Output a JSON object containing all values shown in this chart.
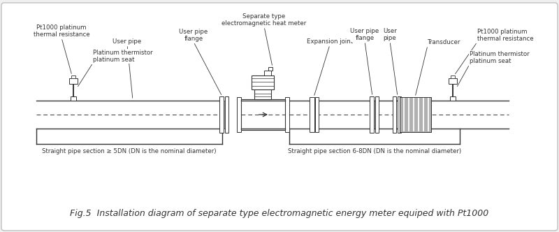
{
  "title": "Fig.5  Installation diagram of separate type electromagnetic energy meter equiped with Pt1000",
  "bg_color": "#f0f0f0",
  "border_color": "#c0c0c0",
  "line_color": "#333333",
  "gray_fill": "#999999",
  "light_gray_fill": "#b0b0b0",
  "white": "#ffffff",
  "labels": {
    "pt1000_left": "Pt1000 platinum\nthermal resistance",
    "thermistor_left": "Platinum thermistor\nplatinum seat",
    "user_pipe_left": "User pipe",
    "upf_left": "User pipe\nflange",
    "em_meter": "Separate type\nelectromagnetic heat meter",
    "exp_joint": "Expansion joint",
    "upf_right": "User pipe\nflange",
    "up_right": "User\npipe",
    "transducer": "Transducer",
    "pt1000_right": "Pt1000 platinum\nthermal resistance",
    "thermistor_right": "Platinum thermistor\nplatinum seat",
    "straight_left": "Straight pipe section ≥ 5DN (DN is the nominal diameter)",
    "straight_right": "Straight pipe section 6-8DN (DN is the nominal diameter)"
  }
}
